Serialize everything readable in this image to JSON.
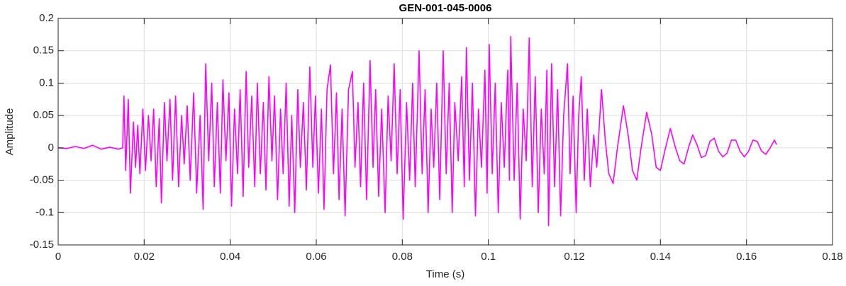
{
  "chart_data": {
    "type": "line",
    "title": "GEN-001-045-0006",
    "xlabel": "Time (s)",
    "ylabel": "Amplitude",
    "grid": true,
    "xlim": [
      0,
      0.18
    ],
    "ylim": [
      -0.15,
      0.2
    ],
    "xticks": [
      0,
      0.02,
      0.04,
      0.06,
      0.08,
      0.1,
      0.12,
      0.14,
      0.16,
      0.18
    ],
    "yticks": [
      -0.15,
      -0.1,
      -0.05,
      0,
      0.05,
      0.1,
      0.15,
      0.2
    ],
    "x": [
      0,
      0.002,
      0.004,
      0.006,
      0.008,
      0.01,
      0.012,
      0.014,
      0.015,
      0.0153,
      0.0157,
      0.0163,
      0.0168,
      0.0175,
      0.018,
      0.0185,
      0.019,
      0.0197,
      0.0203,
      0.021,
      0.0216,
      0.0222,
      0.0228,
      0.0235,
      0.024,
      0.0247,
      0.0253,
      0.026,
      0.0266,
      0.0273,
      0.028,
      0.0287,
      0.0293,
      0.03,
      0.0307,
      0.0315,
      0.0322,
      0.033,
      0.0337,
      0.0343,
      0.035,
      0.0357,
      0.0363,
      0.037,
      0.0377,
      0.0383,
      0.039,
      0.0397,
      0.0403,
      0.041,
      0.0417,
      0.0423,
      0.043,
      0.0437,
      0.0443,
      0.045,
      0.0457,
      0.0463,
      0.047,
      0.0477,
      0.0483,
      0.049,
      0.0497,
      0.0503,
      0.051,
      0.0517,
      0.0523,
      0.053,
      0.0537,
      0.0543,
      0.055,
      0.0557,
      0.0563,
      0.057,
      0.0577,
      0.0585,
      0.0592,
      0.0598,
      0.0605,
      0.0612,
      0.0618,
      0.0625,
      0.0633,
      0.064,
      0.0647,
      0.0653,
      0.066,
      0.0667,
      0.0675,
      0.0684,
      0.069,
      0.0697,
      0.0703,
      0.071,
      0.0717,
      0.0725,
      0.0732,
      0.0738,
      0.0745,
      0.0752,
      0.076,
      0.0767,
      0.0774,
      0.0781,
      0.0788,
      0.0795,
      0.0802,
      0.081,
      0.0817,
      0.0824,
      0.083,
      0.0839,
      0.0846,
      0.0853,
      0.086,
      0.0867,
      0.0873,
      0.088,
      0.0887,
      0.0895,
      0.0902,
      0.0909,
      0.0916,
      0.0922,
      0.093,
      0.0938,
      0.0944,
      0.0949,
      0.0956,
      0.0963,
      0.097,
      0.0977,
      0.0984,
      0.0992,
      0.0997,
      0.1002,
      0.1009,
      0.1016,
      0.1023,
      0.103,
      0.1037,
      0.1045,
      0.1049,
      0.1052,
      0.106,
      0.1067,
      0.1074,
      0.1081,
      0.1088,
      0.1095,
      0.1102,
      0.1109,
      0.1116,
      0.1123,
      0.113,
      0.1136,
      0.114,
      0.1147,
      0.1154,
      0.1161,
      0.1168,
      0.1175,
      0.1184,
      0.119,
      0.1197,
      0.1204,
      0.121,
      0.1216,
      0.1223,
      0.123,
      0.1237,
      0.1245,
      0.1252,
      0.1263,
      0.1272,
      0.128,
      0.129,
      0.13,
      0.1314,
      0.1325,
      0.1335,
      0.1345,
      0.1355,
      0.1368,
      0.138,
      0.139,
      0.14,
      0.141,
      0.1423,
      0.1435,
      0.1445,
      0.1455,
      0.1465,
      0.1475,
      0.1485,
      0.1495,
      0.1505,
      0.1515,
      0.1525,
      0.1535,
      0.1545,
      0.1555,
      0.1565,
      0.1575,
      0.1585,
      0.1595,
      0.1605,
      0.1615,
      0.1625,
      0.1635,
      0.1645,
      0.1655,
      0.1665,
      0.167
    ],
    "series": [
      {
        "color": "#ff00ff",
        "values": [
          0,
          -0.001,
          0.002,
          -0.001,
          0.004,
          -0.002,
          0.001,
          -0.002,
          0.0,
          0.08,
          -0.035,
          0.075,
          -0.07,
          0.04,
          -0.03,
          0.035,
          -0.04,
          0.06,
          -0.035,
          0.05,
          -0.02,
          0.06,
          -0.06,
          0.045,
          -0.085,
          0.07,
          -0.02,
          0.075,
          -0.05,
          0.08,
          -0.06,
          0.05,
          -0.025,
          0.065,
          -0.05,
          0.085,
          -0.07,
          0.05,
          -0.095,
          0.13,
          -0.02,
          0.1,
          -0.06,
          0.07,
          -0.07,
          0.105,
          -0.02,
          0.085,
          -0.09,
          0.06,
          -0.04,
          0.09,
          -0.075,
          0.118,
          -0.03,
          0.08,
          -0.06,
          0.1,
          -0.04,
          0.07,
          -0.065,
          0.11,
          -0.02,
          0.08,
          -0.08,
          0.06,
          -0.04,
          0.1,
          -0.09,
          0.05,
          -0.1,
          0.09,
          -0.03,
          0.07,
          -0.065,
          0.125,
          -0.03,
          0.08,
          -0.07,
          0.06,
          -0.095,
          0.09,
          0.128,
          -0.04,
          0.085,
          -0.08,
          0.06,
          -0.105,
          0.09,
          0.118,
          -0.03,
          0.07,
          -0.06,
          0.1,
          -0.08,
          0.135,
          -0.03,
          0.09,
          -0.075,
          0.06,
          -0.1,
          0.08,
          -0.02,
          0.13,
          -0.04,
          0.09,
          -0.11,
          0.07,
          -0.05,
          0.1,
          -0.06,
          0.15,
          -0.04,
          0.09,
          -0.1,
          0.06,
          -0.03,
          0.1,
          -0.08,
          0.15,
          -0.04,
          0.1,
          -0.1,
          0.07,
          -0.02,
          0.11,
          -0.06,
          0.155,
          -0.05,
          0.1,
          -0.105,
          0.06,
          -0.03,
          0.12,
          -0.07,
          0.16,
          -0.04,
          0.1,
          -0.1,
          0.07,
          -0.03,
          0.12,
          -0.05,
          0.172,
          -0.05,
          0.1,
          -0.11,
          0.06,
          -0.02,
          0.17,
          -0.06,
          0.11,
          -0.1,
          0.06,
          -0.04,
          0.12,
          -0.12,
          0.13,
          -0.06,
          0.09,
          -0.105,
          0.05,
          0.13,
          -0.04,
          0.08,
          -0.1,
          0.05,
          0.11,
          -0.05,
          0.06,
          -0.06,
          0.02,
          -0.03,
          0.09,
          0.01,
          -0.04,
          -0.055,
          0.0,
          0.065,
          0.02,
          -0.035,
          -0.05,
          0.0,
          0.055,
          0.02,
          -0.03,
          -0.035,
          -0.005,
          0.03,
          0.0,
          -0.02,
          -0.025,
          0.0,
          0.02,
          0.005,
          -0.015,
          -0.012,
          0.01,
          0.015,
          -0.005,
          -0.014,
          -0.008,
          0.012,
          0.012,
          -0.005,
          -0.014,
          -0.005,
          0.012,
          0.01,
          -0.005,
          -0.01,
          0.0,
          0.012,
          0.005
        ]
      }
    ]
  }
}
